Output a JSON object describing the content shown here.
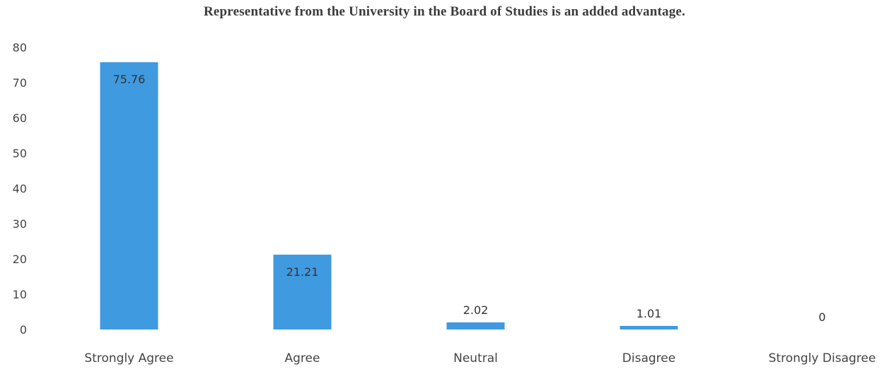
{
  "chart_data": {
    "type": "bar",
    "title": "Representative from the University in the Board of Studies is an added advantage.",
    "categories": [
      "Strongly Agree",
      "Agree",
      "Neutral",
      "Disagree",
      "Strongly Disagree"
    ],
    "values": [
      75.76,
      21.21,
      2.02,
      1.01,
      0
    ],
    "data_labels": [
      "75.76",
      "21.21",
      "2.02",
      "1.01",
      "0"
    ],
    "yticks": [
      "0",
      "10",
      "20",
      "30",
      "40",
      "50",
      "60",
      "70",
      "80"
    ],
    "ylim": [
      0,
      80
    ],
    "grid": false,
    "legend": "none",
    "bar_color": "#3f9ae0",
    "xlabel": "",
    "ylabel": ""
  }
}
